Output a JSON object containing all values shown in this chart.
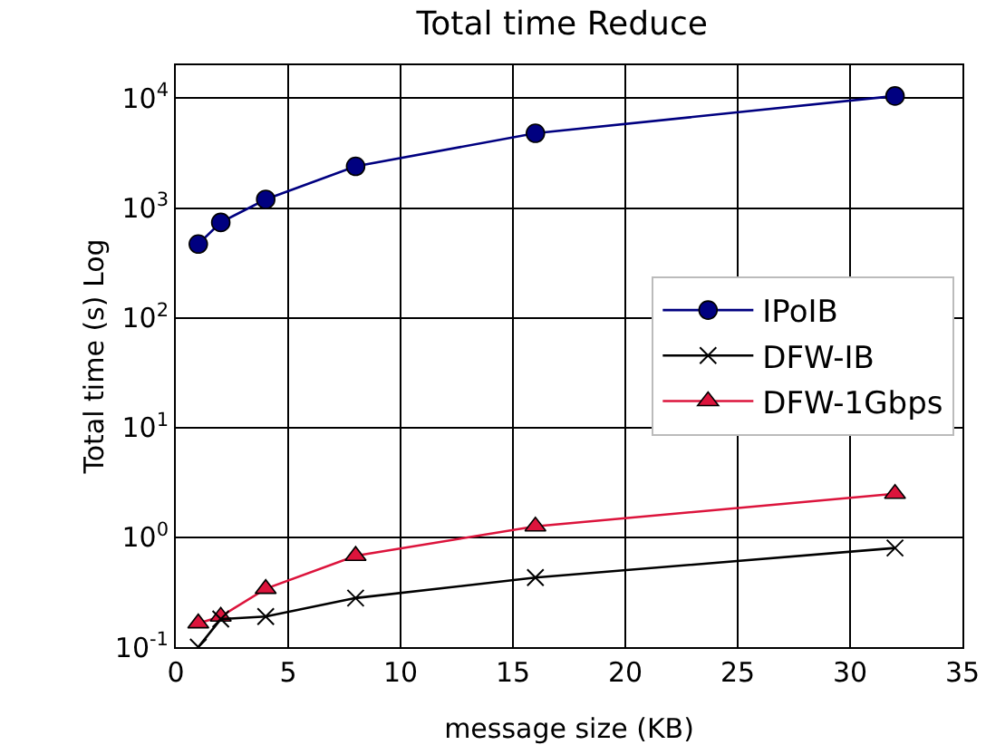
{
  "chart_data": {
    "type": "line",
    "title": "Total time Reduce",
    "xlabel": "message size (KB)",
    "ylabel": "Total time (s) Log",
    "x": [
      1,
      2,
      4,
      8,
      16,
      32
    ],
    "series": [
      {
        "name": "IPoIB",
        "color": "#000080",
        "marker": "circle",
        "values": [
          470,
          740,
          1200,
          2400,
          4800,
          10500
        ]
      },
      {
        "name": "DFW-IB",
        "color": "#000000",
        "marker": "cross",
        "values": [
          0.1,
          0.18,
          0.19,
          0.28,
          0.43,
          0.8
        ]
      },
      {
        "name": "DFW-1Gbps",
        "color": "#dc143c",
        "marker": "triangle",
        "values": [
          0.165,
          0.19,
          0.34,
          0.68,
          1.26,
          2.5
        ]
      }
    ],
    "log": "y",
    "xlim": [
      0,
      35
    ],
    "xticks": [
      0,
      5,
      10,
      15,
      20,
      25,
      30,
      35
    ],
    "ylim": [
      0.1,
      20000
    ],
    "yticks": [
      {
        "value": 0.1,
        "label": "10$^{-1}$"
      },
      {
        "value": 1,
        "label": "10$^{0}$"
      },
      {
        "value": 10,
        "label": "10$^{1}$"
      },
      {
        "value": 100,
        "label": "10$^{2}$"
      },
      {
        "value": 1000,
        "label": "10$^{3}$"
      },
      {
        "value": 10000,
        "label": "10$^{4}$"
      }
    ],
    "grid": true,
    "legend": "right"
  }
}
